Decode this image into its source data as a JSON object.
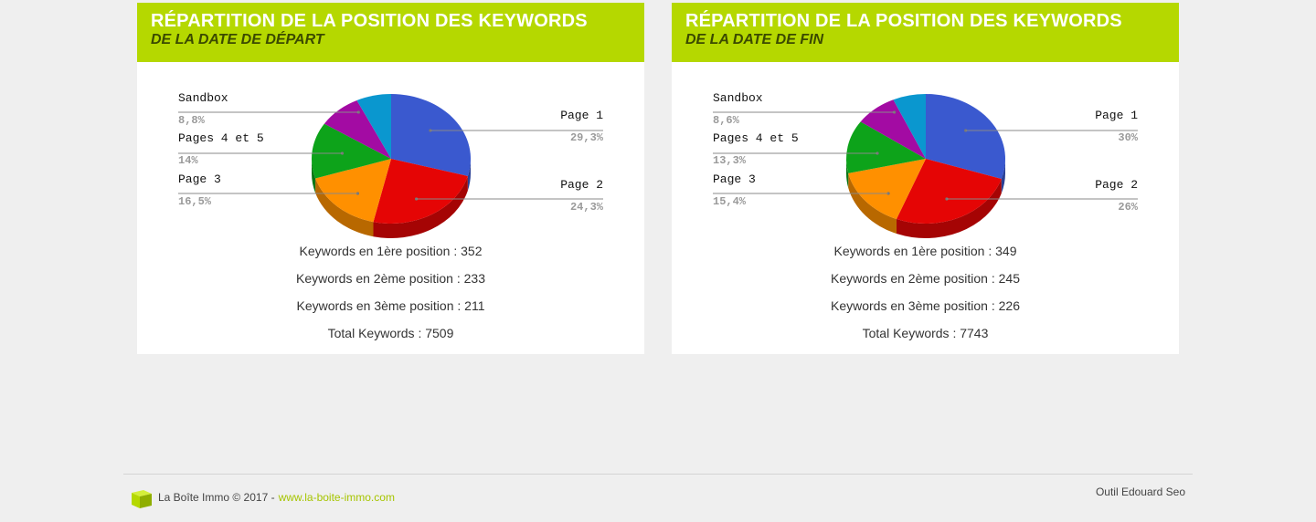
{
  "chart_data": [
    {
      "type": "pie",
      "title": "RÉPARTITION DE LA POSITION DES KEYWORDS",
      "subtitle": "DE LA DATE DE DÉPART",
      "slices": [
        {
          "label": "Page 1",
          "value": 29.3,
          "display": "29,3%",
          "color": "#3a59cf"
        },
        {
          "label": "Page 2",
          "value": 24.3,
          "display": "24,3%",
          "color": "#e50505"
        },
        {
          "label": "Page 3",
          "value": 16.5,
          "display": "16,5%",
          "color": "#ff9000"
        },
        {
          "label": "Pages 4 et 5",
          "value": 14,
          "display": "14%",
          "color": "#0da31a"
        },
        {
          "label": "Sandbox",
          "value": 8.8,
          "display": "8,8%",
          "color": "#a30ba3"
        }
      ],
      "stats": [
        "Keywords en 1ère position : 352",
        "Keywords en 2ème position : 233",
        "Keywords en 3ème position : 211",
        "Total Keywords : 7509"
      ]
    },
    {
      "type": "pie",
      "title": "RÉPARTITION DE LA POSITION DES KEYWORDS",
      "subtitle": "DE LA DATE DE FIN",
      "slices": [
        {
          "label": "Page 1",
          "value": 30,
          "display": "30%",
          "color": "#3a59cf"
        },
        {
          "label": "Page 2",
          "value": 26,
          "display": "26%",
          "color": "#e50505"
        },
        {
          "label": "Page 3",
          "value": 15.4,
          "display": "15,4%",
          "color": "#ff9000"
        },
        {
          "label": "Pages 4 et 5",
          "value": 13.3,
          "display": "13,3%",
          "color": "#0da31a"
        },
        {
          "label": "Sandbox",
          "value": 8.6,
          "display": "8,6%",
          "color": "#a30ba3"
        }
      ],
      "stats": [
        "Keywords en 1ère position : 349",
        "Keywords en 2ème position : 245",
        "Keywords en 3ème position : 226",
        "Total Keywords : 7743"
      ]
    }
  ],
  "remainder_color": "#0a97cf",
  "footer": {
    "copyright": "La Boîte Immo © 2017 -",
    "link": "www.la-boite-immo.com",
    "right": "Outil Edouard Seo"
  },
  "colors": {
    "accent": "#b5d800",
    "link": "#a6c500"
  }
}
